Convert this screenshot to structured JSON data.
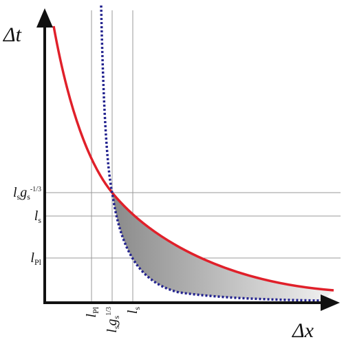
{
  "axes": {
    "y_label": "Δt",
    "x_label": "Δx"
  },
  "y_marks": [
    {
      "parts": [
        {
          "text": "l",
          "pos": "base"
        },
        {
          "text": "s",
          "pos": "sub"
        },
        {
          "text": "g",
          "pos": "base"
        },
        {
          "text": "s",
          "pos": "sub"
        },
        {
          "text": "-1/3",
          "pos": "sup"
        }
      ]
    },
    {
      "parts": [
        {
          "text": "l",
          "pos": "base"
        },
        {
          "text": "s",
          "pos": "sub"
        }
      ]
    },
    {
      "parts": [
        {
          "text": "l",
          "pos": "base"
        },
        {
          "text": "Pl",
          "pos": "sub"
        }
      ]
    }
  ],
  "x_marks": [
    {
      "parts": [
        {
          "text": "l",
          "pos": "base"
        },
        {
          "text": "Pl",
          "pos": "sub"
        }
      ]
    },
    {
      "parts": [
        {
          "text": "l",
          "pos": "base"
        },
        {
          "text": "s",
          "pos": "sub"
        },
        {
          "text": "g",
          "pos": "base"
        },
        {
          "text": "s",
          "pos": "sub"
        },
        {
          "text": "1/3",
          "pos": "sup"
        }
      ]
    },
    {
      "parts": [
        {
          "text": "l",
          "pos": "base"
        },
        {
          "text": "s",
          "pos": "sub"
        }
      ]
    }
  ]
}
